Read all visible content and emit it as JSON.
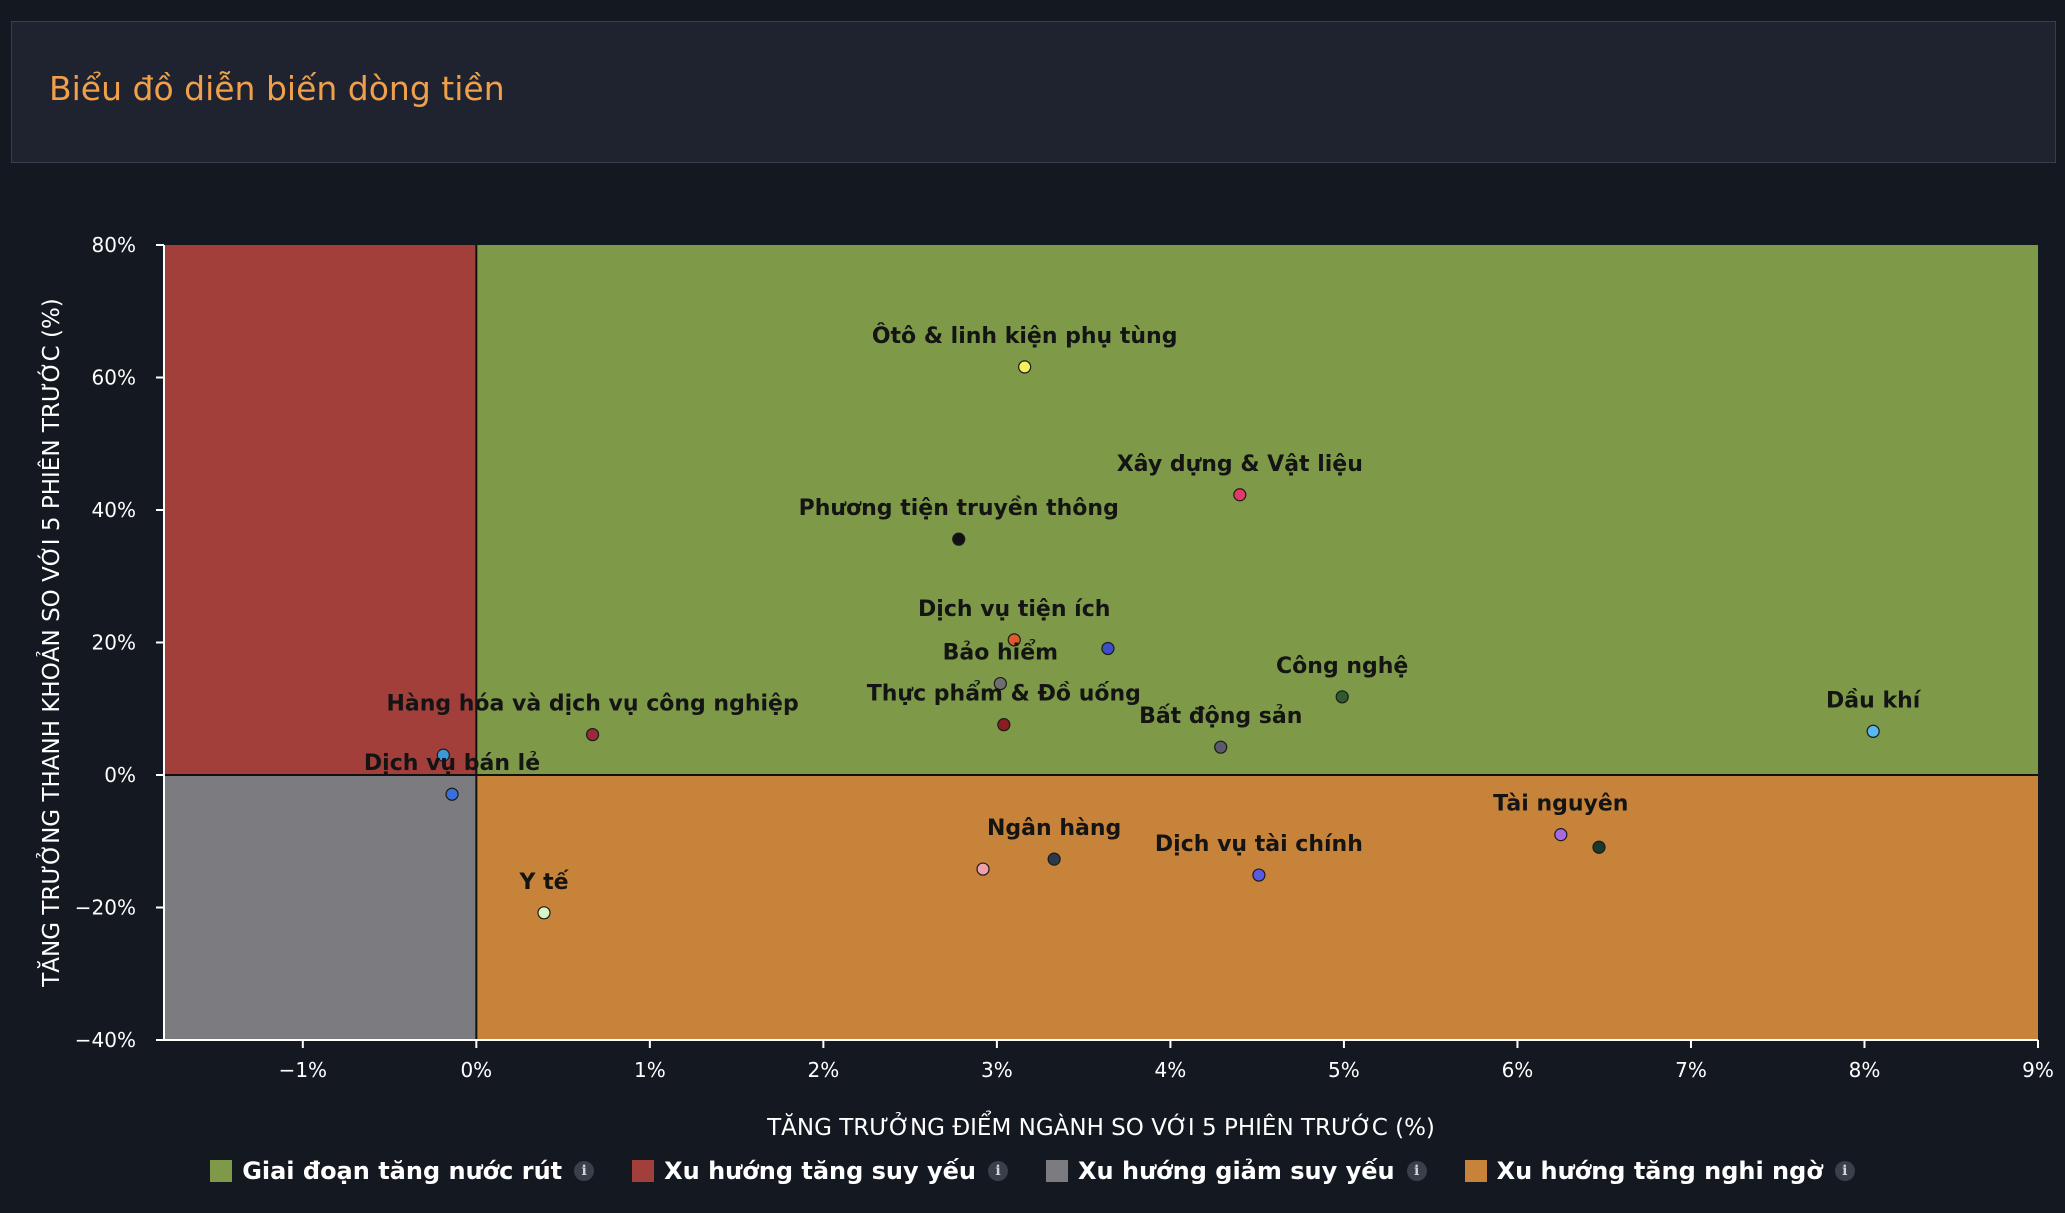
{
  "header": {
    "title": "Biểu đồ diễn biến dòng tiền"
  },
  "chart_data": {
    "type": "scatter",
    "xlabel": "TĂNG TRƯỞNG ĐIỂM NGÀNH SO VỚI 5 PHIÊN TRƯỚC (%)",
    "ylabel": "TĂNG TRƯỞNG THANH KHOẢN SO VỚI 5 PHIÊN TRƯỚC (%)",
    "xlim": [
      -1.8,
      9
    ],
    "ylim": [
      -40,
      80
    ],
    "x_ticks": [
      {
        "value": -1,
        "label": "−1%"
      },
      {
        "value": 0,
        "label": "0%"
      },
      {
        "value": 1,
        "label": "1%"
      },
      {
        "value": 2,
        "label": "2%"
      },
      {
        "value": 3,
        "label": "3%"
      },
      {
        "value": 4,
        "label": "4%"
      },
      {
        "value": 5,
        "label": "5%"
      },
      {
        "value": 6,
        "label": "6%"
      },
      {
        "value": 7,
        "label": "7%"
      },
      {
        "value": 8,
        "label": "8%"
      },
      {
        "value": 9,
        "label": "9%"
      }
    ],
    "y_ticks": [
      {
        "value": 80,
        "label": "80%"
      },
      {
        "value": 60,
        "label": "60%"
      },
      {
        "value": 40,
        "label": "40%"
      },
      {
        "value": 20,
        "label": "20%"
      },
      {
        "value": 0,
        "label": "0%"
      },
      {
        "value": -20,
        "label": "−20%"
      },
      {
        "value": -40,
        "label": "−40%"
      }
    ],
    "grid": false,
    "quadrants": [
      {
        "name": "Giai đoạn tăng nước rút",
        "color": "#7e9a48",
        "x_range": [
          0,
          9
        ],
        "y_range": [
          0,
          80
        ]
      },
      {
        "name": "Xu hướng tăng suy yếu",
        "color": "#a23f3b",
        "x_range": [
          -1.8,
          0
        ],
        "y_range": [
          0,
          80
        ]
      },
      {
        "name": "Xu hướng giảm suy yếu",
        "color": "#7b7b80",
        "x_range": [
          -1.8,
          0
        ],
        "y_range": [
          -40,
          0
        ]
      },
      {
        "name": "Xu hướng tăng nghi ngờ",
        "color": "#c8833a",
        "x_range": [
          0,
          9
        ],
        "y_range": [
          -40,
          0
        ]
      }
    ],
    "points": [
      {
        "label": "Ôtô & linh kiện phụ tùng",
        "x": 3.16,
        "y": 61.6,
        "color": "#f5f05a"
      },
      {
        "label": "Xây dựng & Vật liệu",
        "x": 4.4,
        "y": 42.3,
        "color": "#e03a6a"
      },
      {
        "label": "Phương tiện truyền thông",
        "x": 2.78,
        "y": 35.6,
        "color": "#111111"
      },
      {
        "label": "Dịch vụ tiện ích",
        "x": 3.1,
        "y": 20.4,
        "color": "#e05a2a"
      },
      {
        "label": "",
        "x": 3.64,
        "y": 19.1,
        "color": "#3d4fc7"
      },
      {
        "label": "Bảo hiểm",
        "x": 3.02,
        "y": 13.8,
        "color": "#6f6f6f"
      },
      {
        "label": "Thực phẩm & Đồ uống",
        "x": 3.04,
        "y": 7.6,
        "color": "#8a1e24"
      },
      {
        "label": "Công nghệ",
        "x": 4.99,
        "y": 11.8,
        "color": "#2e5a2e"
      },
      {
        "label": "Bất động sản",
        "x": 4.29,
        "y": 4.2,
        "color": "#5a5a6a"
      },
      {
        "label": "Dầu khí",
        "x": 8.05,
        "y": 6.6,
        "color": "#5ab8f0"
      },
      {
        "label": "Hàng hóa và dịch vụ công nghiệp",
        "x": 0.67,
        "y": 6.1,
        "color": "#9a2a3a"
      },
      {
        "label": "",
        "x": -0.19,
        "y": 3.0,
        "color": "#3a9ad9"
      },
      {
        "label": "Dịch vụ bán lẻ",
        "x": -0.14,
        "y": -2.9,
        "color": "#3a6fd9"
      },
      {
        "label": "Y tế",
        "x": 0.39,
        "y": -20.8,
        "color": "#d8f5c8"
      },
      {
        "label": "",
        "x": 2.92,
        "y": -14.2,
        "color": "#f0a0a8"
      },
      {
        "label": "Ngân hàng",
        "x": 3.33,
        "y": -12.7,
        "color": "#2a3a4a"
      },
      {
        "label": "Dịch vụ tài chính",
        "x": 4.51,
        "y": -15.1,
        "color": "#5a5ae0"
      },
      {
        "label": "Tài nguyên",
        "x": 6.25,
        "y": -9.0,
        "color": "#a86ae0"
      },
      {
        "label": "",
        "x": 6.47,
        "y": -10.9,
        "color": "#1a3a2a"
      }
    ]
  },
  "legend": {
    "items": [
      {
        "label": "Giai đoạn tăng nước rút",
        "color": "#7e9a48",
        "info_glyph": "i"
      },
      {
        "label": "Xu hướng tăng suy yếu",
        "color": "#a23f3b",
        "info_glyph": "i"
      },
      {
        "label": "Xu hướng giảm suy yếu",
        "color": "#7b7b80",
        "info_glyph": "i"
      },
      {
        "label": "Xu hướng tăng nghi ngờ",
        "color": "#c8833a",
        "info_glyph": "i"
      }
    ]
  }
}
